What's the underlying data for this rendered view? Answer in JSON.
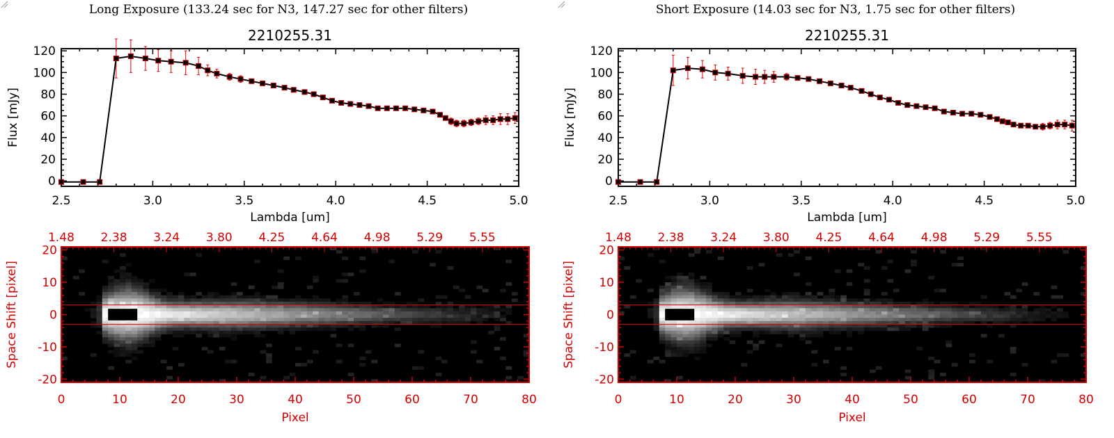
{
  "colors": {
    "frame_red": "#d40000",
    "line": "#000000",
    "errorbar": "#e00000",
    "marker_fill": "#000000",
    "marker_edge": "#cc0000",
    "guide_line": "#e00000"
  },
  "panels": [
    {
      "id": "long",
      "exposure_title": "Long Exposure (133.24 sec for N3, 147.27 sec for other filters)",
      "spectrum": {
        "type": "line",
        "title": "2210255.31",
        "xlabel": "Lambda [um]",
        "ylabel": "Flux [mJy]",
        "xlim": [
          2.5,
          5.0
        ],
        "ylim": [
          -5,
          122
        ],
        "xticks": [
          {
            "v": 2.5,
            "label": "2.5"
          },
          {
            "v": 3.0,
            "label": "3.0"
          },
          {
            "v": 3.5,
            "label": "3.5"
          },
          {
            "v": 4.0,
            "label": "4.0"
          },
          {
            "v": 4.5,
            "label": "4.5"
          },
          {
            "v": 5.0,
            "label": "5.0"
          }
        ],
        "yticks": [
          {
            "v": 0,
            "label": "0"
          },
          {
            "v": 20,
            "label": "20"
          },
          {
            "v": 40,
            "label": "40"
          },
          {
            "v": 60,
            "label": "60"
          },
          {
            "v": 80,
            "label": "80"
          },
          {
            "v": 100,
            "label": "100"
          },
          {
            "v": 120,
            "label": "120"
          }
        ],
        "grid": false,
        "x": [
          2.5,
          2.62,
          2.71,
          2.8,
          2.88,
          2.96,
          3.03,
          3.1,
          3.18,
          3.25,
          3.3,
          3.35,
          3.42,
          3.48,
          3.54,
          3.6,
          3.66,
          3.72,
          3.77,
          3.83,
          3.88,
          3.93,
          3.98,
          4.03,
          4.08,
          4.13,
          4.18,
          4.23,
          4.28,
          4.33,
          4.38,
          4.43,
          4.48,
          4.53,
          4.57,
          4.6,
          4.63,
          4.66,
          4.7,
          4.74,
          4.78,
          4.82,
          4.86,
          4.9,
          4.94,
          4.98
        ],
        "y": [
          -1,
          -1,
          -1,
          113,
          115,
          113,
          111,
          110,
          109,
          106,
          102,
          99,
          96,
          94,
          92,
          90,
          88,
          86,
          84,
          82,
          80,
          77,
          74,
          72,
          71,
          70,
          69,
          67,
          67,
          67,
          67,
          66,
          65,
          64,
          61,
          58,
          55,
          53,
          53,
          54,
          55,
          56,
          56,
          57,
          57,
          58
        ],
        "err": [
          0,
          0,
          0,
          18,
          15,
          11,
          10,
          10,
          11,
          8,
          5,
          4,
          3,
          3,
          2,
          2,
          2,
          2,
          2,
          2,
          2,
          2,
          2,
          2,
          2,
          2,
          2,
          2,
          2,
          2,
          2,
          2,
          2,
          2,
          2,
          2,
          3,
          3,
          3,
          3,
          3,
          4,
          4,
          5,
          5,
          5
        ]
      },
      "image": {
        "type": "heatmap",
        "xlabel": "Pixel",
        "ylabel": "Space Shift [pixel]",
        "xlim": [
          0,
          80
        ],
        "ylim": [
          -21,
          21
        ],
        "xticks": [
          {
            "v": 0,
            "label": "0"
          },
          {
            "v": 10,
            "label": "10"
          },
          {
            "v": 20,
            "label": "20"
          },
          {
            "v": 30,
            "label": "30"
          },
          {
            "v": 40,
            "label": "40"
          },
          {
            "v": 50,
            "label": "50"
          },
          {
            "v": 60,
            "label": "60"
          },
          {
            "v": 70,
            "label": "70"
          },
          {
            "v": 80,
            "label": "80"
          }
        ],
        "yticks": [
          {
            "v": 20,
            "label": "20"
          },
          {
            "v": 10,
            "label": "10"
          },
          {
            "v": 0,
            "label": "0"
          },
          {
            "v": -10,
            "label": "-10"
          },
          {
            "v": -20,
            "label": "-20"
          }
        ],
        "top_ticks": [
          {
            "v": 0,
            "label": "1.48"
          },
          {
            "v": 9,
            "label": "2.38"
          },
          {
            "v": 18,
            "label": "3.24"
          },
          {
            "v": 27,
            "label": "3.80"
          },
          {
            "v": 36,
            "label": "4.25"
          },
          {
            "v": 45,
            "label": "4.64"
          },
          {
            "v": 54,
            "label": "4.98"
          },
          {
            "v": 63,
            "label": "5.29"
          },
          {
            "v": 72,
            "label": "5.55"
          }
        ],
        "guide_lines": [
          3,
          -3
        ],
        "peak_pixel": 11
      }
    },
    {
      "id": "short",
      "exposure_title": "Short Exposure (14.03 sec for N3, 1.75 sec for other filters)",
      "spectrum": {
        "type": "line",
        "title": "2210255.31",
        "xlabel": "Lambda [um]",
        "ylabel": "Flux [mJy]",
        "xlim": [
          2.5,
          5.0
        ],
        "ylim": [
          -5,
          122
        ],
        "xticks": [
          {
            "v": 2.5,
            "label": "2.5"
          },
          {
            "v": 3.0,
            "label": "3.0"
          },
          {
            "v": 3.5,
            "label": "3.5"
          },
          {
            "v": 4.0,
            "label": "4.0"
          },
          {
            "v": 4.5,
            "label": "4.5"
          },
          {
            "v": 5.0,
            "label": "5.0"
          }
        ],
        "yticks": [
          {
            "v": 0,
            "label": "0"
          },
          {
            "v": 20,
            "label": "20"
          },
          {
            "v": 40,
            "label": "40"
          },
          {
            "v": 60,
            "label": "60"
          },
          {
            "v": 80,
            "label": "80"
          },
          {
            "v": 100,
            "label": "100"
          },
          {
            "v": 120,
            "label": "120"
          }
        ],
        "grid": false,
        "x": [
          2.5,
          2.62,
          2.71,
          2.8,
          2.88,
          2.96,
          3.03,
          3.1,
          3.18,
          3.25,
          3.3,
          3.35,
          3.42,
          3.48,
          3.54,
          3.6,
          3.66,
          3.72,
          3.77,
          3.83,
          3.88,
          3.93,
          3.98,
          4.03,
          4.08,
          4.13,
          4.18,
          4.23,
          4.28,
          4.33,
          4.38,
          4.43,
          4.48,
          4.53,
          4.57,
          4.6,
          4.63,
          4.66,
          4.7,
          4.74,
          4.78,
          4.82,
          4.86,
          4.9,
          4.94,
          4.98
        ],
        "y": [
          -1,
          -1,
          -1,
          102,
          104,
          103,
          100,
          99,
          97,
          96,
          96,
          96,
          96,
          95,
          94,
          92,
          90,
          88,
          86,
          83,
          80,
          77,
          75,
          72,
          70,
          69,
          68,
          67,
          64,
          63,
          62,
          62,
          61,
          59,
          57,
          55,
          54,
          52,
          51,
          51,
          50,
          50,
          51,
          52,
          52,
          51
        ],
        "err": [
          0,
          0,
          0,
          14,
          10,
          8,
          7,
          6,
          7,
          7,
          6,
          5,
          3,
          2,
          2,
          2,
          2,
          2,
          2,
          2,
          2,
          2,
          2,
          2,
          2,
          2,
          2,
          2,
          2,
          2,
          2,
          2,
          2,
          2,
          2,
          2,
          2,
          2,
          2,
          2,
          2,
          3,
          3,
          4,
          4,
          5
        ]
      },
      "image": {
        "type": "heatmap",
        "xlabel": "Pixel",
        "ylabel": "Space Shift [pixel]",
        "xlim": [
          0,
          80
        ],
        "ylim": [
          -21,
          21
        ],
        "xticks": [
          {
            "v": 0,
            "label": "0"
          },
          {
            "v": 10,
            "label": "10"
          },
          {
            "v": 20,
            "label": "20"
          },
          {
            "v": 30,
            "label": "30"
          },
          {
            "v": 40,
            "label": "40"
          },
          {
            "v": 50,
            "label": "50"
          },
          {
            "v": 60,
            "label": "60"
          },
          {
            "v": 70,
            "label": "70"
          },
          {
            "v": 80,
            "label": "80"
          }
        ],
        "yticks": [
          {
            "v": 20,
            "label": "20"
          },
          {
            "v": 10,
            "label": "10"
          },
          {
            "v": 0,
            "label": "0"
          },
          {
            "v": -10,
            "label": "-10"
          },
          {
            "v": -20,
            "label": "-20"
          }
        ],
        "top_ticks": [
          {
            "v": 0,
            "label": "1.48"
          },
          {
            "v": 9,
            "label": "2.38"
          },
          {
            "v": 18,
            "label": "3.24"
          },
          {
            "v": 27,
            "label": "3.80"
          },
          {
            "v": 36,
            "label": "4.25"
          },
          {
            "v": 45,
            "label": "4.64"
          },
          {
            "v": 54,
            "label": "4.98"
          },
          {
            "v": 63,
            "label": "5.29"
          },
          {
            "v": 72,
            "label": "5.55"
          }
        ],
        "guide_lines": [
          3,
          -3
        ],
        "peak_pixel": 11
      }
    }
  ],
  "chart_data": [
    {
      "type": "line",
      "title": "2210255.31",
      "xlabel": "Lambda [um]",
      "ylabel": "Flux [mJy]",
      "xlim": [
        2.5,
        5.0
      ],
      "ylim": [
        -5,
        122
      ],
      "series": [
        {
          "x": [
            2.5,
            2.62,
            2.71,
            2.8,
            2.88,
            2.96,
            3.03,
            3.1,
            3.18,
            3.25,
            3.3,
            3.35,
            3.42,
            3.48,
            3.54,
            3.6,
            3.66,
            3.72,
            3.77,
            3.83,
            3.88,
            3.93,
            3.98,
            4.03,
            4.08,
            4.13,
            4.18,
            4.23,
            4.28,
            4.33,
            4.38,
            4.43,
            4.48,
            4.53,
            4.57,
            4.6,
            4.63,
            4.66,
            4.7,
            4.74,
            4.78,
            4.82,
            4.86,
            4.9,
            4.94,
            4.98
          ],
          "y": [
            -1,
            -1,
            -1,
            113,
            115,
            113,
            111,
            110,
            109,
            106,
            102,
            99,
            96,
            94,
            92,
            90,
            88,
            86,
            84,
            82,
            80,
            77,
            74,
            72,
            71,
            70,
            69,
            67,
            67,
            67,
            67,
            66,
            65,
            64,
            61,
            58,
            55,
            53,
            53,
            54,
            55,
            56,
            56,
            57,
            57,
            58
          ]
        }
      ]
    },
    {
      "type": "heatmap",
      "xlabel": "Pixel",
      "ylabel": "Space Shift [pixel]",
      "xlim": [
        0,
        80
      ],
      "ylim": [
        -21,
        21
      ]
    },
    {
      "type": "line",
      "title": "2210255.31",
      "xlabel": "Lambda [um]",
      "ylabel": "Flux [mJy]",
      "xlim": [
        2.5,
        5.0
      ],
      "ylim": [
        -5,
        122
      ],
      "series": [
        {
          "x": [
            2.5,
            2.62,
            2.71,
            2.8,
            2.88,
            2.96,
            3.03,
            3.1,
            3.18,
            3.25,
            3.3,
            3.35,
            3.42,
            3.48,
            3.54,
            3.6,
            3.66,
            3.72,
            3.77,
            3.83,
            3.88,
            3.93,
            3.98,
            4.03,
            4.08,
            4.13,
            4.18,
            4.23,
            4.28,
            4.33,
            4.38,
            4.43,
            4.48,
            4.53,
            4.57,
            4.6,
            4.63,
            4.66,
            4.7,
            4.74,
            4.78,
            4.82,
            4.86,
            4.9,
            4.94,
            4.98
          ],
          "y": [
            -1,
            -1,
            -1,
            102,
            104,
            103,
            100,
            99,
            97,
            96,
            96,
            96,
            96,
            95,
            94,
            92,
            90,
            88,
            86,
            83,
            80,
            77,
            75,
            72,
            70,
            69,
            68,
            67,
            64,
            63,
            62,
            62,
            61,
            59,
            57,
            55,
            54,
            52,
            51,
            51,
            50,
            50,
            51,
            52,
            52,
            51
          ]
        }
      ]
    },
    {
      "type": "heatmap",
      "xlabel": "Pixel",
      "ylabel": "Space Shift [pixel]",
      "xlim": [
        0,
        80
      ],
      "ylim": [
        -21,
        21
      ]
    }
  ]
}
